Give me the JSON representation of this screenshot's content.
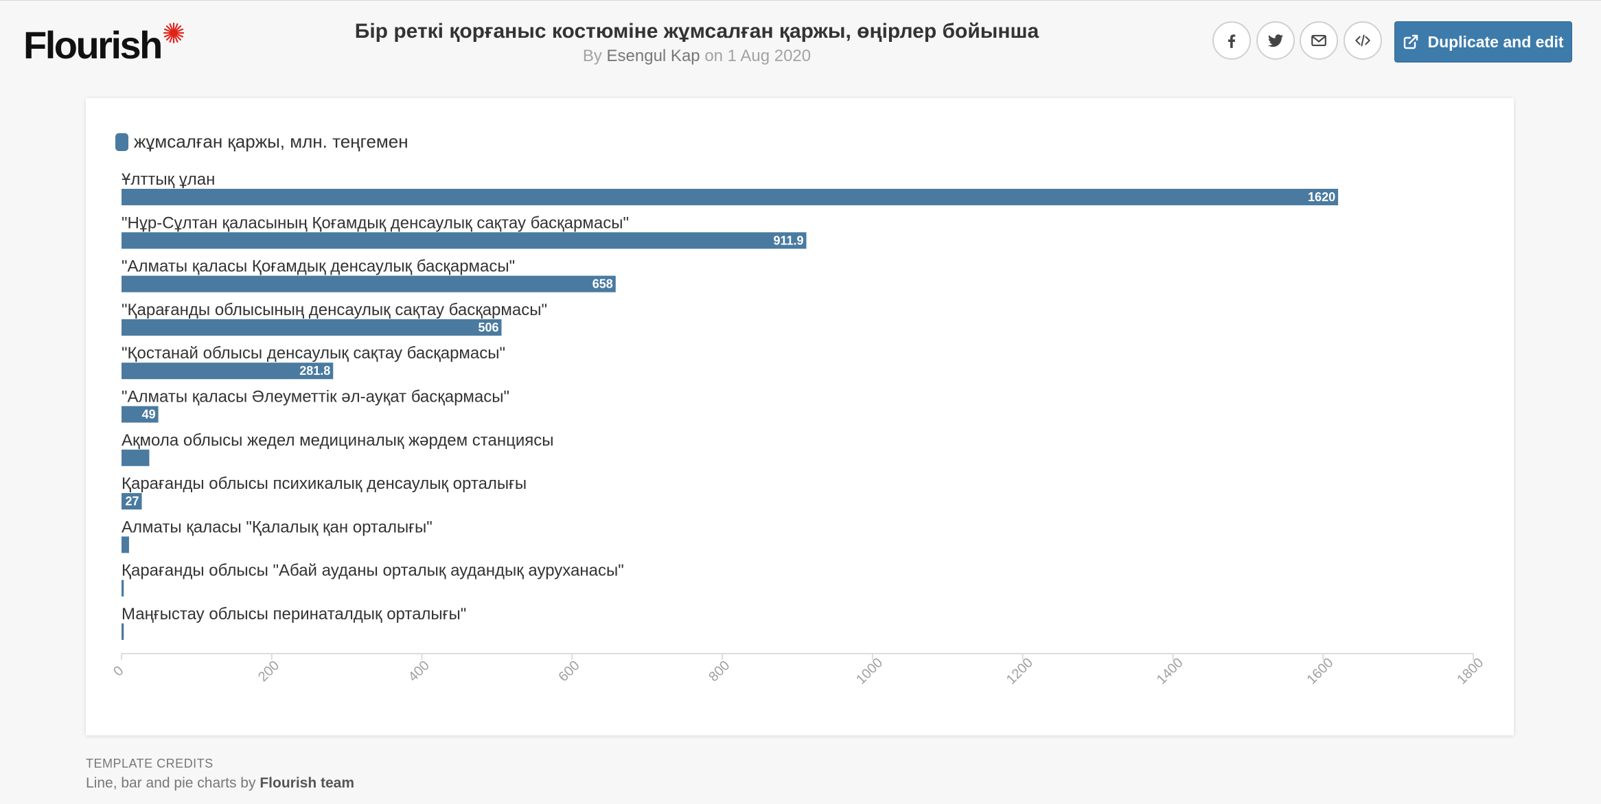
{
  "brand": {
    "logo_text": "Flourish",
    "accent": "#e2231a"
  },
  "header": {
    "title": "Бір реткі қорғаныс костюміне жұмсалған қаржы, өңірлер бойынша",
    "by_word": "By",
    "author": "Esengul Kap",
    "date_text": "on 1 Aug 2020",
    "share_icons": [
      "facebook-icon",
      "twitter-icon",
      "email-icon",
      "embed-code-icon"
    ],
    "duplicate_label": "Duplicate and edit",
    "button_color": "#3d7bab"
  },
  "chart_data": {
    "type": "bar",
    "orientation": "horizontal",
    "legend": {
      "label": "жұмсалған қаржы, млн. теңгемен",
      "color": "#4a7aa0",
      "placement": "top-left"
    },
    "categories": [
      "Ұлттық ұлан",
      "\"Нұр-Сұлтан қаласының Қоғамдық денсаулық сақтау басқармасы\"",
      "\"Алматы қаласы Қоғамдық денсаулық басқармасы\"",
      "\"Қарағанды облысының денсаулық сақтау басқармасы\"",
      "\"Қостанай облысы денсаулық сақтау басқармасы\"",
      "\"Алматы қаласы Әлеуметтік әл-ауқат басқармасы\"",
      "Ақмола облысы жедел медициналық жәрдем станциясы",
      "Қарағанды облысы психикалық денсаулық орталығы",
      "Алматы қаласы \"Қалалық қан орталығы\"",
      "Қарағанды облысы \"Абай ауданы орталық аудандық ауруханасы\"",
      "Маңғыстау облысы перинаталдық орталығы\""
    ],
    "series": [
      {
        "name": "жұмсалған қаржы, млн. теңгемен",
        "values": [
          1620,
          911.9,
          658,
          506,
          281.8,
          49,
          37,
          27,
          10,
          3,
          3
        ],
        "data_labels": [
          "1620",
          "911.9",
          "658",
          "506",
          "281.8",
          "49",
          "",
          "27",
          "",
          "",
          ""
        ]
      }
    ],
    "xlim": [
      0,
      1800
    ],
    "x_ticks": [
      "0",
      "200",
      "400",
      "600",
      "800",
      "1000",
      "1200",
      "1400",
      "1600",
      "1800"
    ],
    "grid": false
  },
  "credits": {
    "heading": "TEMPLATE CREDITS",
    "prefix": "Line, bar and pie charts by",
    "team": "Flourish team"
  }
}
